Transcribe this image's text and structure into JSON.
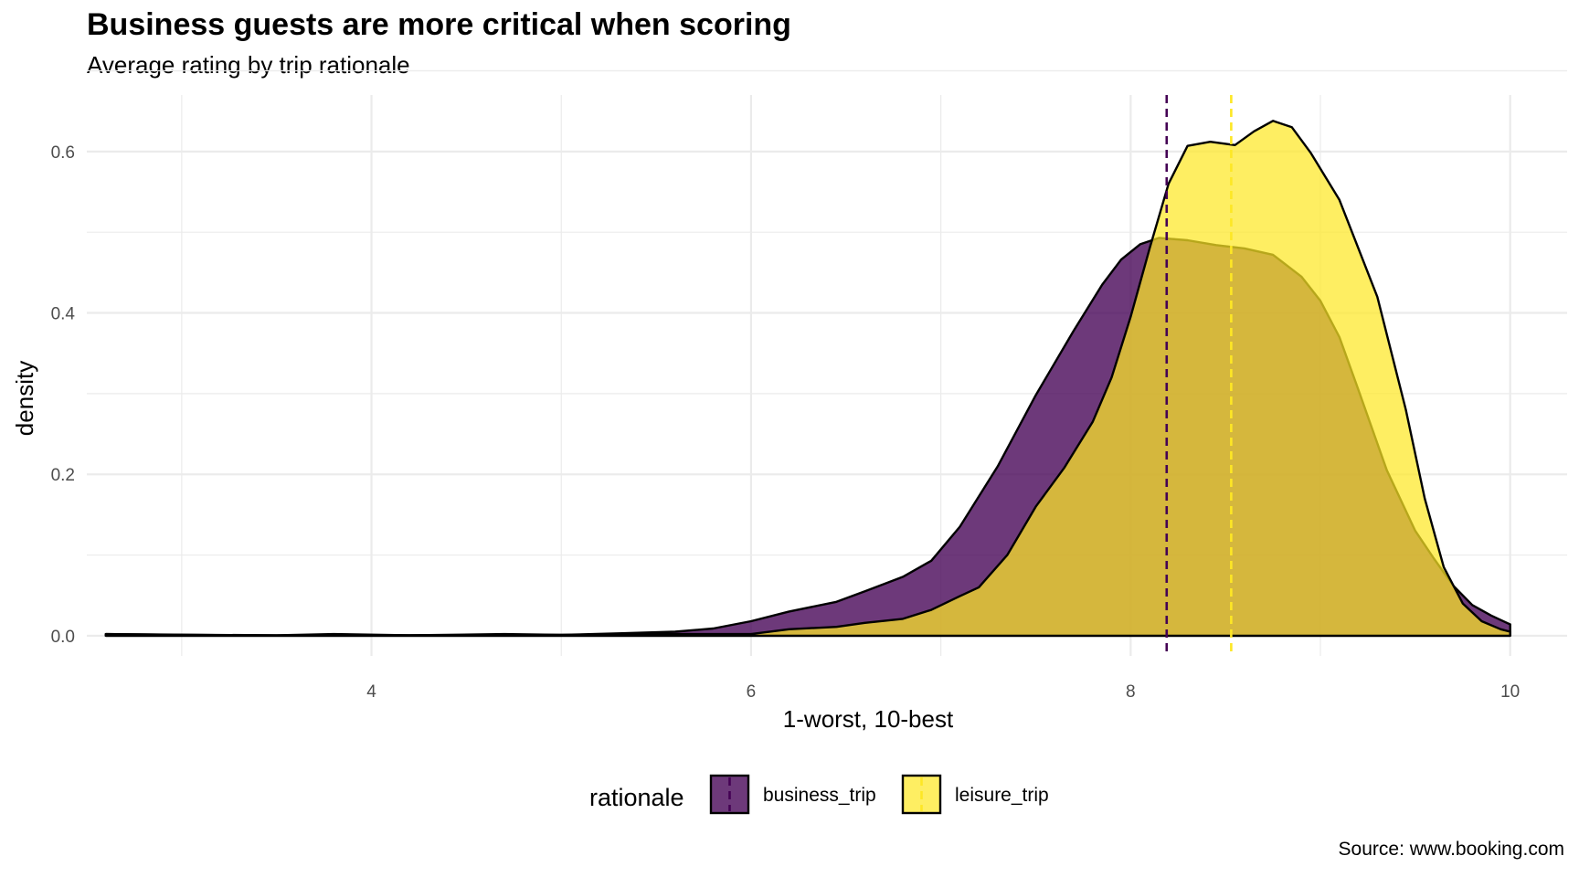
{
  "chart_data": {
    "type": "area",
    "title": "Business guests are more critical when scoring",
    "subtitle": "Average rating by trip rationale",
    "caption": "Source: www.booking.com",
    "xlabel": "1-worst, 10-best",
    "ylabel": "density",
    "xlim": [
      2.5,
      10.3
    ],
    "ylim": [
      -0.025,
      0.67
    ],
    "x_ticks": [
      4,
      6,
      8,
      10
    ],
    "y_ticks": [
      0.0,
      0.2,
      0.4,
      0.6
    ],
    "x_tick_labels": [
      "4",
      "6",
      "8",
      "10"
    ],
    "y_tick_labels": [
      "0.0",
      "0.2",
      "0.4",
      "0.6"
    ],
    "grid": true,
    "legend": {
      "title": "rationale",
      "position": "bottom"
    },
    "series": [
      {
        "name": "business_trip",
        "color": "#440154",
        "fill_opacity": 0.78,
        "mean": 8.19,
        "points": [
          [
            2.6,
            0.002
          ],
          [
            3.0,
            0.001
          ],
          [
            3.5,
            0.0005
          ],
          [
            3.8,
            0.002
          ],
          [
            4.2,
            0.0005
          ],
          [
            4.7,
            0.002
          ],
          [
            5.0,
            0.001
          ],
          [
            5.3,
            0.003
          ],
          [
            5.6,
            0.005
          ],
          [
            5.8,
            0.009
          ],
          [
            6.0,
            0.018
          ],
          [
            6.2,
            0.03
          ],
          [
            6.45,
            0.042
          ],
          [
            6.6,
            0.055
          ],
          [
            6.8,
            0.073
          ],
          [
            6.95,
            0.093
          ],
          [
            7.1,
            0.135
          ],
          [
            7.3,
            0.21
          ],
          [
            7.5,
            0.298
          ],
          [
            7.7,
            0.378
          ],
          [
            7.85,
            0.435
          ],
          [
            7.95,
            0.466
          ],
          [
            8.05,
            0.485
          ],
          [
            8.15,
            0.493
          ],
          [
            8.3,
            0.49
          ],
          [
            8.45,
            0.484
          ],
          [
            8.6,
            0.48
          ],
          [
            8.75,
            0.472
          ],
          [
            8.9,
            0.445
          ],
          [
            9.0,
            0.415
          ],
          [
            9.1,
            0.37
          ],
          [
            9.2,
            0.305
          ],
          [
            9.35,
            0.205
          ],
          [
            9.5,
            0.13
          ],
          [
            9.6,
            0.095
          ],
          [
            9.7,
            0.062
          ],
          [
            9.8,
            0.038
          ],
          [
            9.9,
            0.025
          ],
          [
            10.0,
            0.014
          ]
        ]
      },
      {
        "name": "leisure_trip",
        "color": "#FDE725",
        "fill_opacity": 0.72,
        "mean": 8.53,
        "points": [
          [
            2.6,
            0.002
          ],
          [
            3.5,
            0.0005
          ],
          [
            4.0,
            0.0005
          ],
          [
            5.0,
            0.001
          ],
          [
            5.5,
            0.002
          ],
          [
            6.0,
            0.002
          ],
          [
            6.2,
            0.008
          ],
          [
            6.45,
            0.011
          ],
          [
            6.6,
            0.016
          ],
          [
            6.8,
            0.021
          ],
          [
            6.95,
            0.032
          ],
          [
            7.1,
            0.049
          ],
          [
            7.2,
            0.06
          ],
          [
            7.35,
            0.1
          ],
          [
            7.5,
            0.16
          ],
          [
            7.65,
            0.208
          ],
          [
            7.8,
            0.265
          ],
          [
            7.9,
            0.32
          ],
          [
            8.0,
            0.395
          ],
          [
            8.1,
            0.48
          ],
          [
            8.2,
            0.56
          ],
          [
            8.3,
            0.607
          ],
          [
            8.42,
            0.612
          ],
          [
            8.55,
            0.608
          ],
          [
            8.65,
            0.625
          ],
          [
            8.75,
            0.638
          ],
          [
            8.85,
            0.63
          ],
          [
            8.95,
            0.598
          ],
          [
            9.1,
            0.54
          ],
          [
            9.3,
            0.42
          ],
          [
            9.45,
            0.28
          ],
          [
            9.55,
            0.17
          ],
          [
            9.65,
            0.085
          ],
          [
            9.75,
            0.04
          ],
          [
            9.85,
            0.018
          ],
          [
            9.95,
            0.008
          ],
          [
            10.0,
            0.005
          ]
        ]
      }
    ]
  }
}
